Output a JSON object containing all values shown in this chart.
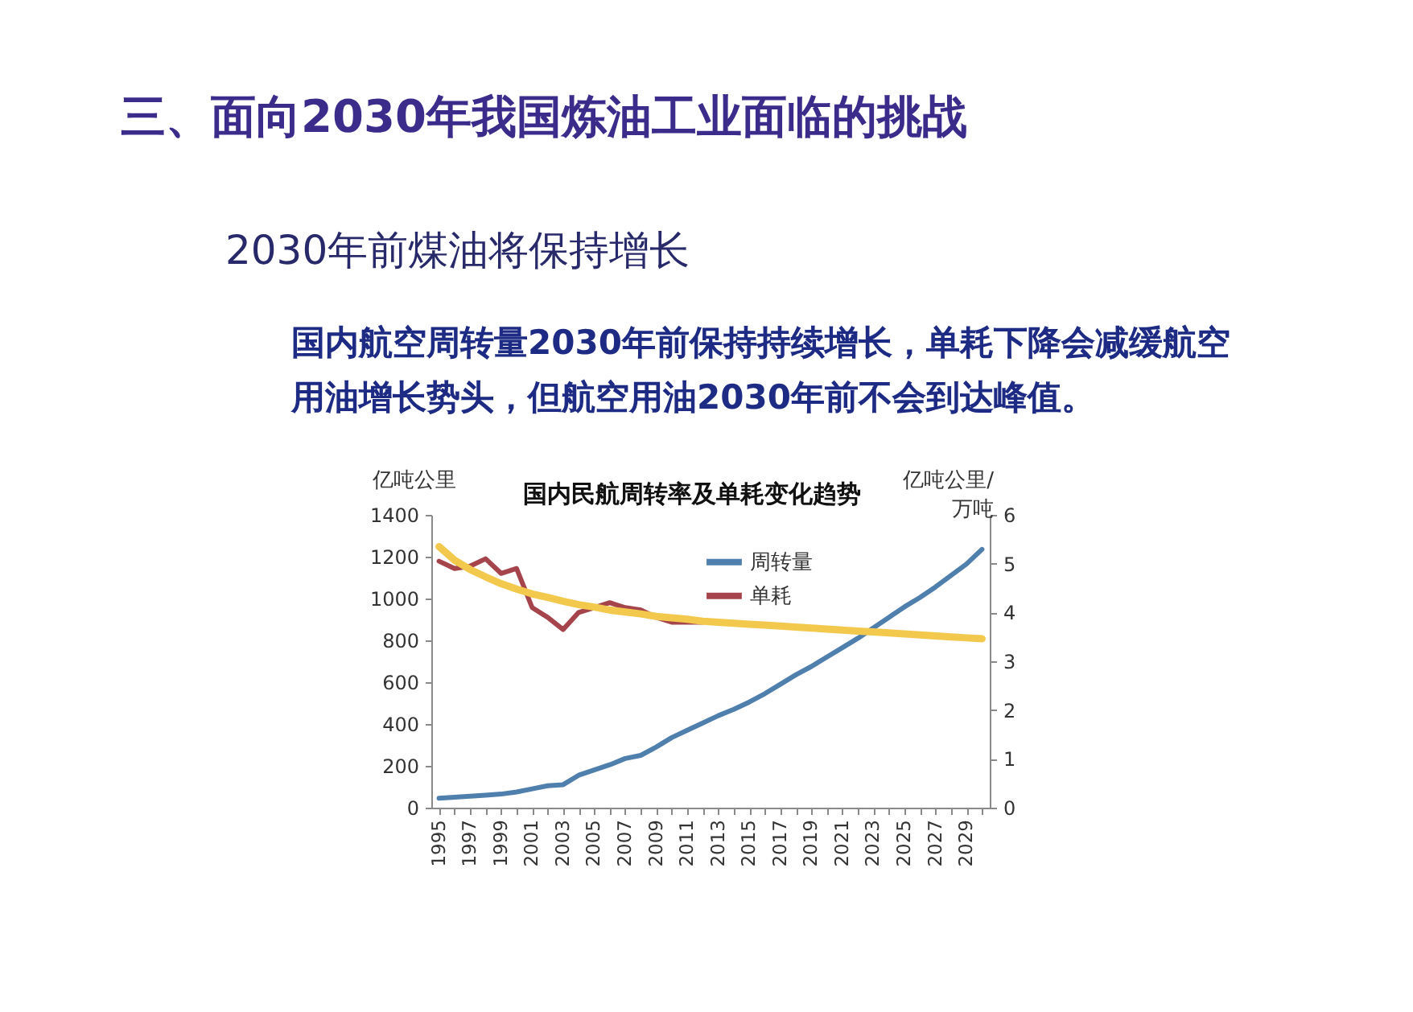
{
  "chart_data": {
    "type": "line",
    "title": "国内民航周转率及单耗变化趋势",
    "ylabel": "亿吨公里",
    "y2label": "亿吨公里/万吨",
    "annotations": [
      "三、面向2030年我国炼油工业面临的挑战",
      "2030年前煤油将保持增长",
      "国内航空周转量2030年前保持持续增长，单耗下降会减缓航空用油增长势头，但航空用油2030年前不会到达峰值。"
    ],
    "categories": [
      "1995",
      null,
      "1997",
      null,
      "1999",
      null,
      "2001",
      null,
      "2003",
      null,
      "2005",
      null,
      "2007",
      null,
      "2009",
      null,
      "2011",
      null,
      "2013",
      null,
      "2015",
      null,
      "2017",
      null,
      "2019",
      null,
      "2021",
      null,
      "2023",
      null,
      "2025",
      null,
      "2027",
      null,
      "2029",
      null
    ],
    "ylim": [
      0,
      1400
    ],
    "yticks": [
      0,
      200,
      400,
      600,
      800,
      1000,
      1200,
      1400
    ],
    "y2lim": [
      0,
      6
    ],
    "y2ticks": [
      0,
      1,
      2,
      3,
      4,
      5,
      6
    ],
    "series": [
      {
        "name": "周转量",
        "color": "#4f7fac",
        "values": [
          45,
          50,
          55,
          60,
          65,
          75,
          90,
          105,
          110,
          155,
          180,
          205,
          235,
          250,
          290,
          335,
          370,
          405,
          440,
          470,
          505,
          545,
          590,
          635,
          675,
          720,
          765,
          810,
          860,
          910,
          960,
          1005,
          1055,
          1110,
          1165,
          1235
        ]
      },
      {
        "name": "单耗",
        "color": "#a6444c",
        "axis": "y2",
        "values": [
          5.05,
          4.9,
          4.95,
          5.1,
          4.8,
          4.9,
          4.1,
          3.9,
          3.65,
          4.0,
          4.1,
          4.2,
          4.1,
          4.05,
          3.9,
          3.8,
          3.8,
          3.8,
          null,
          null,
          null,
          null,
          null,
          null,
          null,
          null,
          null,
          null,
          null,
          null,
          null,
          null,
          null,
          null,
          null,
          null
        ]
      },
      {
        "color": "#f2c94c",
        "axis": "y2",
        "values": [
          5.35,
          5.07,
          4.88,
          4.73,
          4.59,
          4.48,
          4.38,
          4.31,
          4.23,
          4.16,
          4.11,
          4.05,
          4.01,
          3.97,
          3.92,
          3.89,
          3.86,
          3.82,
          3.8,
          3.78,
          3.76,
          3.74,
          3.72,
          3.7,
          3.68,
          3.66,
          3.64,
          3.62,
          3.6,
          3.58,
          3.56,
          3.54,
          3.52,
          3.5,
          3.48,
          3.46
        ]
      }
    ],
    "legend": "top right",
    "grid": false,
    "line_style": "solid"
  }
}
